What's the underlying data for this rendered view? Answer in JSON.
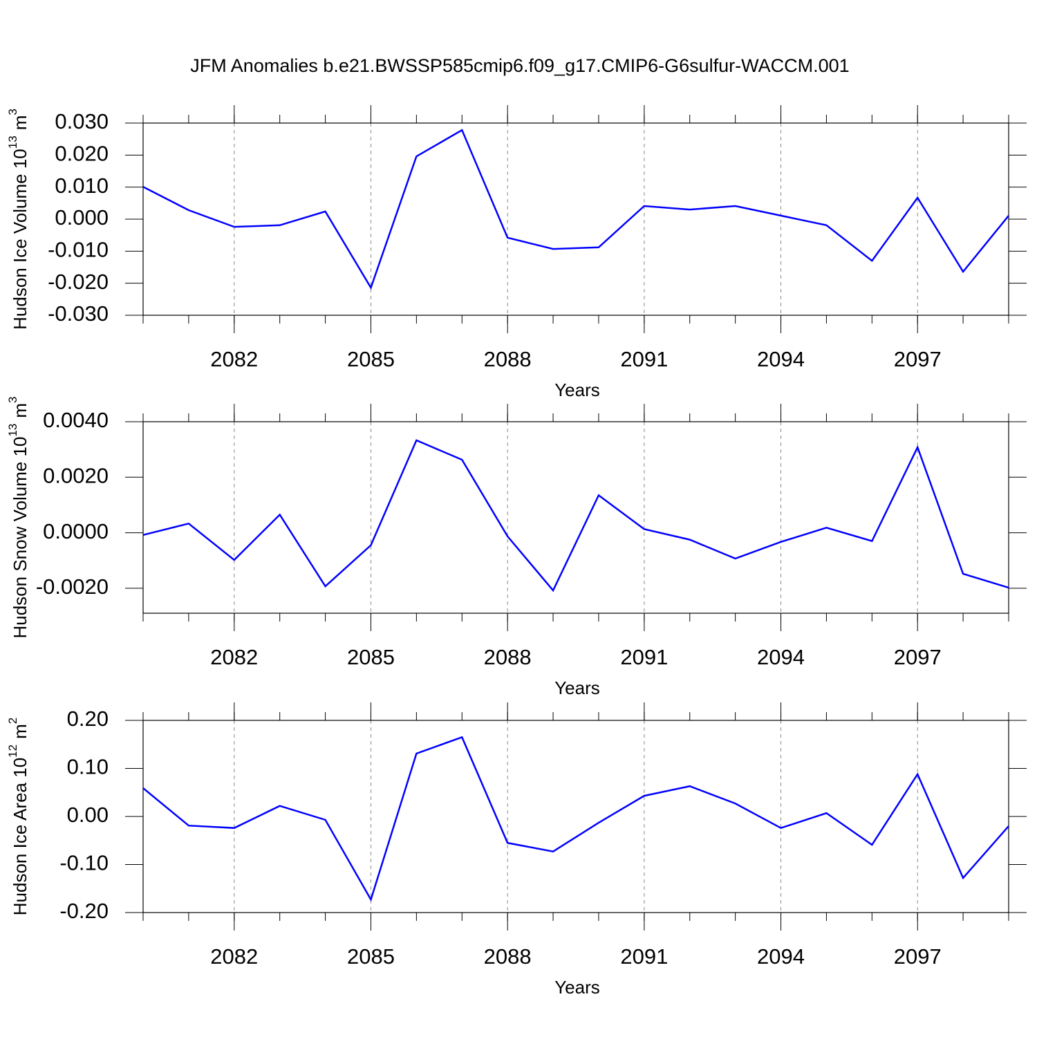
{
  "title": "JFM Anomalies b.e21.BWSSP585cmip6.f09_g17.CMIP6-G6sulfur-WACCM.001",
  "chart_data": [
    {
      "type": "line",
      "xlabel": "Years",
      "ylabel": [
        "Hudson Ice Volume 10",
        "13",
        "m",
        "3"
      ],
      "x": [
        2080,
        2081,
        2082,
        2083,
        2084,
        2085,
        2086,
        2087,
        2088,
        2089,
        2090,
        2091,
        2092,
        2093,
        2094,
        2095,
        2096,
        2097,
        2098,
        2099
      ],
      "series": [
        {
          "color": "#0000ff",
          "values": [
            0.0101,
            0.0028,
            -0.0024,
            -0.0019,
            0.0024,
            -0.0214,
            0.0196,
            0.0278,
            -0.0058,
            -0.0093,
            -0.0088,
            0.0041,
            0.003,
            0.0041,
            0.0011,
            -0.0019,
            -0.013,
            0.0067,
            -0.0164,
            0.0011
          ]
        }
      ],
      "xlim": [
        2080,
        2099
      ],
      "xticks": [
        2082,
        2085,
        2088,
        2091,
        2094,
        2097
      ],
      "ylim": [
        -0.03,
        0.03
      ],
      "yticks": [
        {
          "value": -0.03,
          "label": "-0.030"
        },
        {
          "value": -0.02,
          "label": "-0.020"
        },
        {
          "value": -0.01,
          "label": "-0.010"
        },
        {
          "value": 0,
          "label": "0.000"
        },
        {
          "value": 0.01,
          "label": "0.010"
        },
        {
          "value": 0.02,
          "label": "0.020"
        },
        {
          "value": 0.03,
          "label": "0.030"
        }
      ],
      "grid": true
    },
    {
      "type": "line",
      "xlabel": "Years",
      "ylabel": [
        "Hudson Snow Volume 10",
        "13",
        "m",
        "3"
      ],
      "x": [
        2080,
        2081,
        2082,
        2083,
        2084,
        2085,
        2086,
        2087,
        2088,
        2089,
        2090,
        2091,
        2092,
        2093,
        2094,
        2095,
        2096,
        2097,
        2098,
        2099
      ],
      "series": [
        {
          "color": "#0000ff",
          "values": [
            -8e-05,
            0.00033,
            -0.00098,
            0.00065,
            -0.00193,
            -0.00045,
            0.00333,
            0.00263,
            -0.00013,
            -0.00208,
            0.00135,
            0.00013,
            -0.00025,
            -0.00093,
            -0.00033,
            0.00018,
            -0.0003,
            0.00308,
            -0.00148,
            -0.00198
          ]
        }
      ],
      "xlim": [
        2080,
        2099
      ],
      "xticks": [
        2082,
        2085,
        2088,
        2091,
        2094,
        2097
      ],
      "ylim": [
        -0.0029,
        0.004
      ],
      "yticks": [
        {
          "value": -0.002,
          "label": "-0.0020"
        },
        {
          "value": 0,
          "label": "0.0000"
        },
        {
          "value": 0.002,
          "label": "0.0020"
        },
        {
          "value": 0.004,
          "label": "0.0040"
        }
      ],
      "grid": true
    },
    {
      "type": "line",
      "xlabel": "Years",
      "ylabel": [
        "Hudson Ice Area 10",
        "12",
        "m",
        "2"
      ],
      "x": [
        2080,
        2081,
        2082,
        2083,
        2084,
        2085,
        2086,
        2087,
        2088,
        2089,
        2090,
        2091,
        2092,
        2093,
        2094,
        2095,
        2096,
        2097,
        2098,
        2099
      ],
      "series": [
        {
          "color": "#0000ff",
          "values": [
            0.059,
            -0.019,
            -0.024,
            0.022,
            -0.007,
            -0.173,
            0.131,
            0.165,
            -0.055,
            -0.073,
            -0.013,
            0.043,
            0.063,
            0.027,
            -0.024,
            0.007,
            -0.059,
            0.088,
            -0.128,
            -0.02
          ]
        }
      ],
      "xlim": [
        2080,
        2099
      ],
      "xticks": [
        2082,
        2085,
        2088,
        2091,
        2094,
        2097
      ],
      "ylim": [
        -0.2,
        0.2
      ],
      "yticks": [
        {
          "value": -0.2,
          "label": "-0.20"
        },
        {
          "value": -0.1,
          "label": "-0.10"
        },
        {
          "value": 0,
          "label": "0.00"
        },
        {
          "value": 0.1,
          "label": "0.10"
        },
        {
          "value": 0.2,
          "label": "0.20"
        }
      ],
      "grid": true
    }
  ]
}
